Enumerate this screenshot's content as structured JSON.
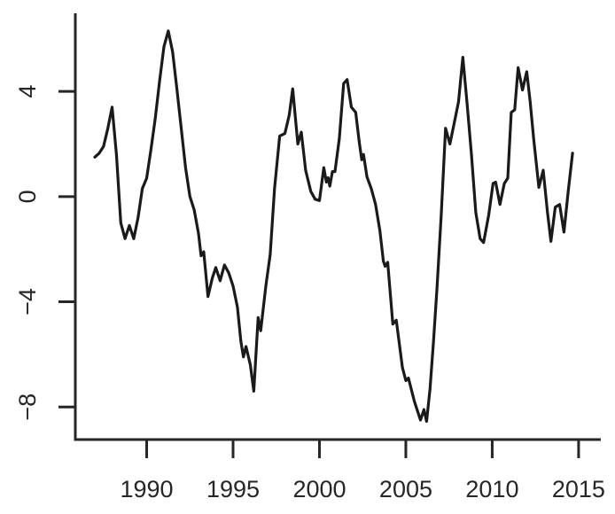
{
  "chart_data": {
    "type": "line",
    "grid": false,
    "legend": "none",
    "background": "#ffffff",
    "line_color": "#1a1a1a",
    "axis_color": "#262626",
    "label_color": "#262626",
    "xlim": [
      1985.87,
      2016.44
    ],
    "ylim": [
      -9.24,
      6.97
    ],
    "x_ticks": [
      1990,
      1995,
      2000,
      2005,
      2010,
      2015
    ],
    "x_tick_labels": [
      "1990",
      "1995",
      "2000",
      "2005",
      "2010",
      "2015"
    ],
    "y_ticks": [
      -8,
      -4,
      0,
      4
    ],
    "y_tick_labels": [
      "−8",
      "−4",
      "0",
      "4"
    ],
    "series": [
      {
        "name": "series-1",
        "points": [
          [
            1987.0,
            1.5
          ],
          [
            1987.25,
            1.65
          ],
          [
            1987.5,
            1.9
          ],
          [
            1987.75,
            2.6
          ],
          [
            1988.0,
            3.4
          ],
          [
            1988.25,
            1.6
          ],
          [
            1988.5,
            -1.0
          ],
          [
            1988.75,
            -1.6
          ],
          [
            1989.0,
            -1.1
          ],
          [
            1989.25,
            -1.6
          ],
          [
            1989.5,
            -0.8
          ],
          [
            1989.75,
            0.3
          ],
          [
            1990.0,
            0.7
          ],
          [
            1990.25,
            1.8
          ],
          [
            1990.5,
            3.0
          ],
          [
            1990.75,
            4.4
          ],
          [
            1991.0,
            5.7
          ],
          [
            1991.25,
            6.3
          ],
          [
            1991.5,
            5.5
          ],
          [
            1991.75,
            4.1
          ],
          [
            1992.0,
            2.6
          ],
          [
            1992.25,
            1.1
          ],
          [
            1992.5,
            0.0
          ],
          [
            1992.75,
            -0.5
          ],
          [
            1993.0,
            -1.4
          ],
          [
            1993.15,
            -2.25
          ],
          [
            1993.3,
            -2.1
          ],
          [
            1993.55,
            -3.8
          ],
          [
            1993.8,
            -3.1
          ],
          [
            1994.0,
            -2.7
          ],
          [
            1994.25,
            -3.2
          ],
          [
            1994.5,
            -2.6
          ],
          [
            1994.75,
            -2.9
          ],
          [
            1995.0,
            -3.4
          ],
          [
            1995.25,
            -4.2
          ],
          [
            1995.45,
            -5.5
          ],
          [
            1995.6,
            -6.1
          ],
          [
            1995.75,
            -5.7
          ],
          [
            1996.0,
            -6.4
          ],
          [
            1996.2,
            -7.4
          ],
          [
            1996.45,
            -4.6
          ],
          [
            1996.6,
            -5.1
          ],
          [
            1996.9,
            -3.4
          ],
          [
            1997.15,
            -2.2
          ],
          [
            1997.4,
            0.3
          ],
          [
            1997.7,
            2.3
          ],
          [
            1998.0,
            2.4
          ],
          [
            1998.25,
            3.1
          ],
          [
            1998.45,
            4.1
          ],
          [
            1998.75,
            2.0
          ],
          [
            1998.95,
            2.45
          ],
          [
            1999.2,
            1.0
          ],
          [
            1999.5,
            0.2
          ],
          [
            1999.75,
            -0.1
          ],
          [
            2000.0,
            -0.15
          ],
          [
            2000.25,
            1.1
          ],
          [
            2000.4,
            0.55
          ],
          [
            2000.5,
            0.72
          ],
          [
            2000.6,
            0.4
          ],
          [
            2000.75,
            0.95
          ],
          [
            2000.9,
            0.95
          ],
          [
            2001.15,
            2.2
          ],
          [
            2001.4,
            4.3
          ],
          [
            2001.6,
            4.45
          ],
          [
            2001.85,
            3.4
          ],
          [
            2002.1,
            3.2
          ],
          [
            2002.3,
            2.1
          ],
          [
            2002.45,
            1.4
          ],
          [
            2002.55,
            1.6
          ],
          [
            2002.75,
            0.75
          ],
          [
            2003.0,
            0.3
          ],
          [
            2003.25,
            -0.3
          ],
          [
            2003.5,
            -1.3
          ],
          [
            2003.7,
            -2.45
          ],
          [
            2003.8,
            -2.65
          ],
          [
            2003.95,
            -2.5
          ],
          [
            2004.25,
            -4.85
          ],
          [
            2004.45,
            -4.7
          ],
          [
            2004.8,
            -6.5
          ],
          [
            2005.0,
            -7.0
          ],
          [
            2005.15,
            -6.9
          ],
          [
            2005.5,
            -7.8
          ],
          [
            2005.85,
            -8.5
          ],
          [
            2006.05,
            -8.1
          ],
          [
            2006.2,
            -8.55
          ],
          [
            2006.4,
            -7.3
          ],
          [
            2006.6,
            -5.5
          ],
          [
            2006.8,
            -3.5
          ],
          [
            2007.05,
            -0.7
          ],
          [
            2007.3,
            2.6
          ],
          [
            2007.55,
            2.0
          ],
          [
            2007.8,
            2.8
          ],
          [
            2008.05,
            3.6
          ],
          [
            2008.3,
            5.3
          ],
          [
            2008.55,
            3.5
          ],
          [
            2008.8,
            1.6
          ],
          [
            2009.05,
            -0.6
          ],
          [
            2009.3,
            -1.6
          ],
          [
            2009.5,
            -1.75
          ],
          [
            2009.8,
            -0.7
          ],
          [
            2010.05,
            0.5
          ],
          [
            2010.2,
            0.55
          ],
          [
            2010.45,
            -0.3
          ],
          [
            2010.7,
            0.5
          ],
          [
            2010.9,
            0.7
          ],
          [
            2011.1,
            3.2
          ],
          [
            2011.3,
            3.3
          ],
          [
            2011.5,
            4.9
          ],
          [
            2011.75,
            4.05
          ],
          [
            2012.0,
            4.75
          ],
          [
            2012.2,
            3.6
          ],
          [
            2012.4,
            2.2
          ],
          [
            2012.7,
            0.35
          ],
          [
            2012.95,
            1.0
          ],
          [
            2013.2,
            -0.6
          ],
          [
            2013.4,
            -1.7
          ],
          [
            2013.65,
            -0.4
          ],
          [
            2013.9,
            -0.3
          ],
          [
            2014.15,
            -1.35
          ],
          [
            2014.4,
            0.2
          ],
          [
            2014.65,
            1.65
          ]
        ]
      }
    ]
  }
}
